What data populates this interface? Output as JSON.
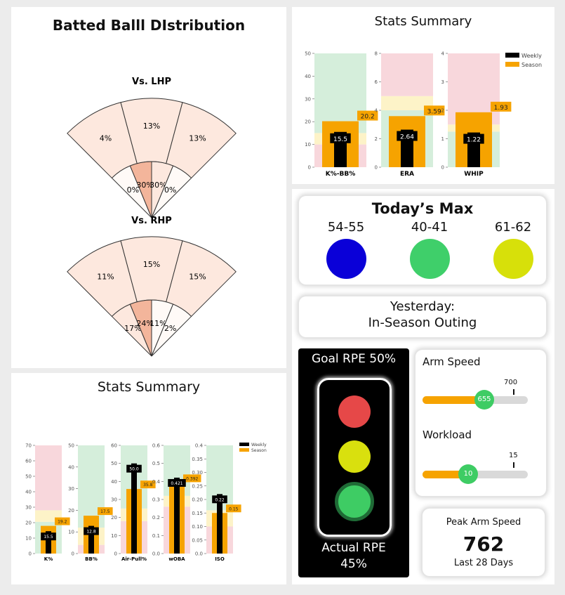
{
  "batted": {
    "title": "Batted Balll DIstribution",
    "lhp": {
      "title": "Vs. LHP",
      "outer": [
        "4%",
        "13%",
        "13%"
      ],
      "inner": [
        "0%",
        "30%",
        "30%",
        "0%"
      ]
    },
    "rhp": {
      "title": "Vs. RHP",
      "outer": [
        "11%",
        "15%",
        "15%"
      ],
      "inner": [
        "17%",
        "24%",
        "11%",
        "2%"
      ]
    },
    "colors": {
      "light": "#fde8de",
      "mid": "#f9d2bf",
      "dark": "#f3b59b",
      "white": "#fffaf7"
    }
  },
  "pitching_summary": {
    "title": "Stats Summary",
    "legend": [
      "Weekly",
      "Season"
    ]
  },
  "batting_summary": {
    "title": "Stats Summary",
    "legend": [
      "Weekly",
      "Season"
    ]
  },
  "chart_data": [
    {
      "type": "bar",
      "title": "Stats Summary",
      "categories": [
        "K%-BB%",
        "ERA",
        "WHIP"
      ],
      "series": [
        {
          "name": "Weekly",
          "values": [
            15.5,
            2.64,
            1.22
          ]
        },
        {
          "name": "Season",
          "values": [
            20.2,
            3.59,
            1.93
          ]
        }
      ],
      "ylims": [
        [
          0,
          50
        ],
        [
          0,
          8
        ],
        [
          0,
          4
        ]
      ],
      "ticks": [
        [
          "0",
          "10",
          "20",
          "30",
          "40",
          "50"
        ],
        [
          "0",
          "2",
          "4",
          "6",
          "8"
        ],
        [
          "0",
          "1",
          "2",
          "3",
          "4"
        ]
      ],
      "value_labels": {
        "weekly": [
          "15.5",
          "2.64",
          "1.22"
        ],
        "season": [
          "20.2",
          "3.59",
          "1.93"
        ]
      },
      "bands": [
        [
          {
            "from": 0,
            "to": 10,
            "color": "#f8d7dc"
          },
          {
            "from": 10,
            "to": 15,
            "color": "#fdf3c8"
          },
          {
            "from": 15,
            "to": 50,
            "color": "#d5eedb"
          }
        ],
        [
          {
            "from": 0,
            "to": 4,
            "color": "#d5eedb"
          },
          {
            "from": 4,
            "to": 5,
            "color": "#fdf3c8"
          },
          {
            "from": 5,
            "to": 8,
            "color": "#f8d7dc"
          }
        ],
        [
          {
            "from": 0,
            "to": 1.25,
            "color": "#d5eedb"
          },
          {
            "from": 1.25,
            "to": 1.5,
            "color": "#fdf3c8"
          },
          {
            "from": 1.5,
            "to": 4,
            "color": "#f8d7dc"
          }
        ]
      ],
      "colors": {
        "weekly": "#000000",
        "season": "#f6a300"
      },
      "legend": "top-right"
    },
    {
      "type": "bar",
      "title": "Stats Summary",
      "categories": [
        "K%",
        "BB%",
        "Air-Pull%",
        "wOBA",
        "ISO"
      ],
      "series": [
        {
          "name": "Weekly",
          "values": [
            15.5,
            12.8,
            50.0,
            0.421,
            0.22
          ]
        },
        {
          "name": "Season",
          "values": [
            19.2,
            17.5,
            35.8,
            0.392,
            0.15
          ]
        }
      ],
      "ylims": [
        [
          0,
          75
        ],
        [
          0,
          50
        ],
        [
          0,
          60
        ],
        [
          0,
          0.6
        ],
        [
          0,
          0.4
        ]
      ],
      "ticks": [
        [
          "0",
          "10",
          "20",
          "30",
          "40",
          "50",
          "60",
          "70"
        ],
        [
          "0",
          "10",
          "20",
          "30",
          "40",
          "50"
        ],
        [
          "0",
          "10",
          "20",
          "30",
          "40",
          "50",
          "60"
        ],
        [
          "0.0",
          "0.1",
          "0.2",
          "0.3",
          "0.4",
          "0.5",
          "0.6"
        ],
        [
          "0.0",
          "0.05",
          "0.10",
          "0.15",
          "0.20",
          "0.25",
          "0.30",
          "0.35",
          "0.4"
        ]
      ],
      "value_labels": {
        "weekly": [
          "15.5",
          "12.8",
          "50.0",
          "0.421",
          "0.22"
        ],
        "season": [
          "19.2",
          "17.5",
          "35.8",
          "0.392",
          "0.15"
        ]
      },
      "bands": [
        [
          {
            "from": 0,
            "to": 22,
            "color": "#d5eedb"
          },
          {
            "from": 22,
            "to": 30,
            "color": "#fdf3c8"
          },
          {
            "from": 30,
            "to": 75,
            "color": "#f8d7dc"
          }
        ],
        [
          {
            "from": 0,
            "to": 4,
            "color": "#f8d7dc"
          },
          {
            "from": 4,
            "to": 12,
            "color": "#fdf3c8"
          },
          {
            "from": 12,
            "to": 50,
            "color": "#d5eedb"
          }
        ],
        [
          {
            "from": 0,
            "to": 18,
            "color": "#f8d7dc"
          },
          {
            "from": 18,
            "to": 25,
            "color": "#fdf3c8"
          },
          {
            "from": 25,
            "to": 60,
            "color": "#d5eedb"
          }
        ],
        [
          {
            "from": 0,
            "to": 0.26,
            "color": "#f8d7dc"
          },
          {
            "from": 0.26,
            "to": 0.32,
            "color": "#fdf3c8"
          },
          {
            "from": 0.32,
            "to": 0.6,
            "color": "#d5eedb"
          }
        ],
        [
          {
            "from": 0,
            "to": 0.1,
            "color": "#f8d7dc"
          },
          {
            "from": 0.1,
            "to": 0.16,
            "color": "#fdf3c8"
          },
          {
            "from": 0.16,
            "to": 0.4,
            "color": "#d5eedb"
          }
        ]
      ],
      "colors": {
        "weekly": "#000000",
        "season": "#f6a300"
      },
      "legend": "top-right"
    }
  ],
  "todays_max": {
    "title": "Today’s Max",
    "items": [
      {
        "label": "54-55",
        "color": "#0a00d8"
      },
      {
        "label": "40-41",
        "color": "#3fcf6a"
      },
      {
        "label": "61-62",
        "color": "#d7e00a"
      }
    ]
  },
  "yesterday": {
    "line1": "Yesterday:",
    "line2": "In-Season Outing"
  },
  "rpe": {
    "goal": "Goal RPE 50%",
    "actual_line1": "Actual RPE",
    "actual_line2": "45%",
    "lights": {
      "red": "#e64848",
      "yellow": "#d9e00e",
      "green": "#3ecc64"
    }
  },
  "arm_speed": {
    "label": "Arm Speed",
    "value": "655",
    "target": "700",
    "fraction": 0.56,
    "target_fraction": 0.82
  },
  "workload": {
    "label": "Workload",
    "value": "10",
    "target": "15",
    "fraction": 0.43,
    "target_fraction": 0.83
  },
  "peak": {
    "label": "Peak Arm Speed",
    "value": "762",
    "sub": "Last 28 Days"
  },
  "colors": {
    "accent_orange": "#f6a300",
    "track_gray": "#d9d9d9",
    "slider_green": "#3ecc64"
  }
}
